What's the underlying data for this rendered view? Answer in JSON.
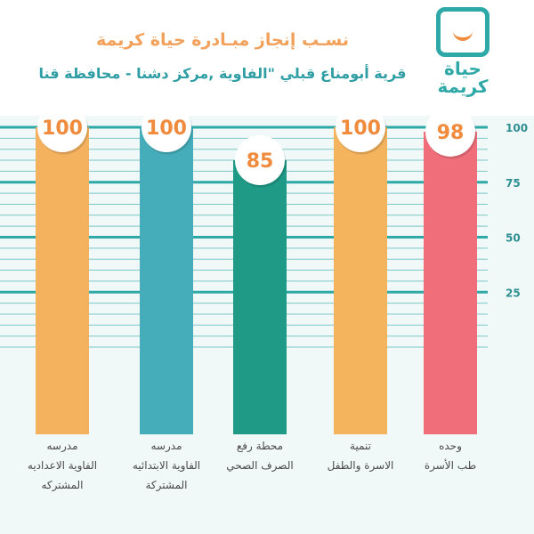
{
  "title": "نسـب إنجاز مبـادرة حياة كريمة",
  "subtitle": "قرية أبومناع قبلي \"الفاوية ,مركز دشنا - محافظة قنا",
  "logo": {
    "line1": "حياة",
    "line2": "كريمة"
  },
  "colors": {
    "grid": "#2fa9a8",
    "bg_band": "#e6f3f3",
    "circle_text": "#f08a3c"
  },
  "chart_data": {
    "type": "bar",
    "categories": [
      "مدرسه\nالفاوية الاعداديه\nالمشتركه",
      "مدرسه\nالفاوية الابتدائيه\nالمشتركة",
      "محطة رفع\nالصرف الصحي",
      "تنمية\nالاسرة والطفل",
      "وحده\nطب الأسرة"
    ],
    "values": [
      100,
      100,
      85,
      100,
      98
    ],
    "bar_colors": [
      "#f5b25e",
      "#45adb9",
      "#1f9a86",
      "#f4b35d",
      "#f06e7a"
    ],
    "yticks": [
      25,
      50,
      75,
      100
    ],
    "ylim": [
      0,
      100
    ],
    "grid": true
  }
}
